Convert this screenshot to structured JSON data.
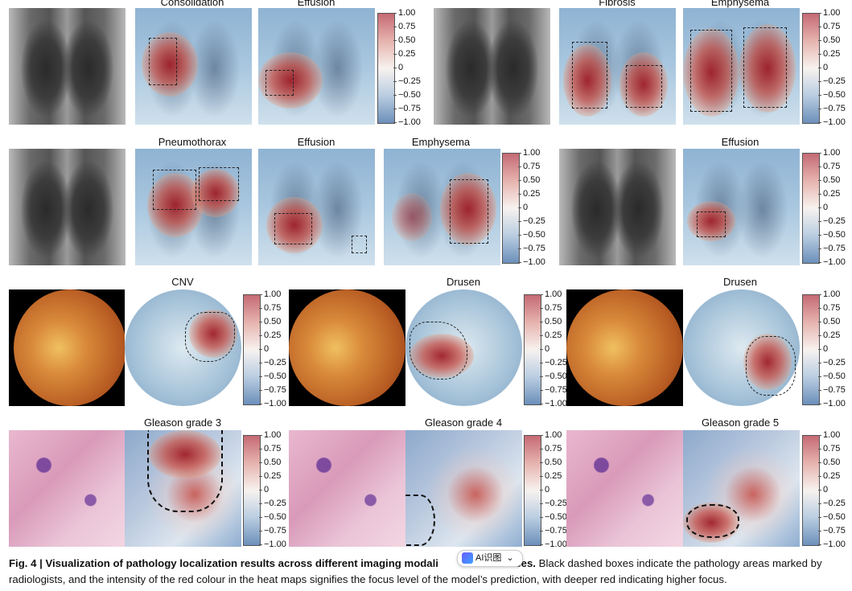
{
  "row1": {
    "labels": [
      "Consolidation",
      "Effusion",
      "Fibrosis",
      "Emphysema"
    ]
  },
  "row2": {
    "labels": [
      "Pneumothorax",
      "Effusion",
      "Emphysema",
      "Effusion"
    ]
  },
  "row3": {
    "labels": [
      "CNV",
      "Drusen",
      "Drusen"
    ]
  },
  "row4": {
    "labels": [
      "Gleason grade 3",
      "Gleason grade 4",
      "Gleason grade 5"
    ]
  },
  "colorbar_ticks": [
    "1.00",
    "0.75",
    "0.50",
    "0.25",
    "0",
    "−0.25",
    "−0.50",
    "−0.75",
    "−1.00"
  ],
  "caption": {
    "fig_label": "Fig. 4 | Visualization of pathology localization results across different imaging modali",
    "fig_label_tail": "ases.",
    "body": " Black dashed boxes indicate the pathology areas marked by radiologists, and the intensity of the red colour in the heat maps signifies the focus level of the model’s prediction, with deeper red indicating higher focus."
  },
  "ai_badge": {
    "label": "AI识图",
    "chevron": "⌄"
  }
}
